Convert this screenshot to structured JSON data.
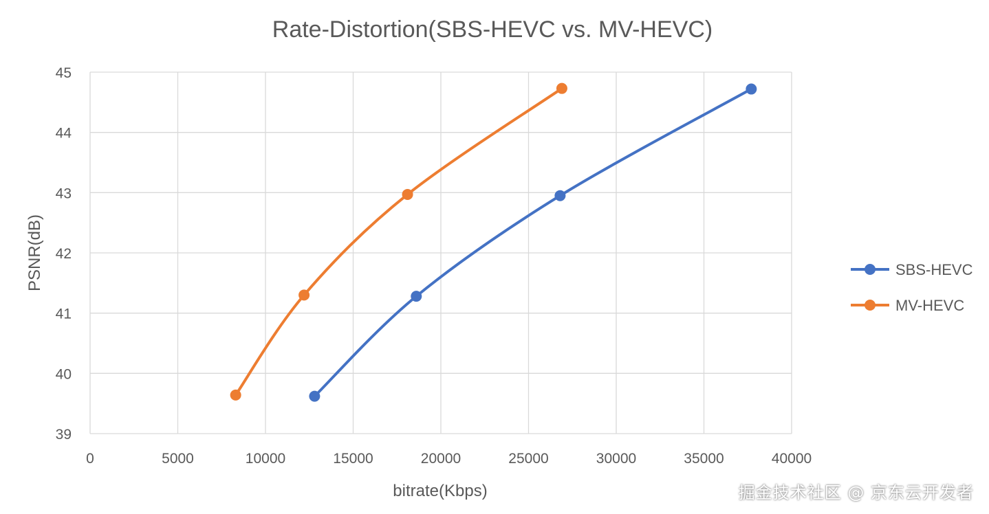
{
  "chart_data": {
    "type": "line",
    "title": "Rate-Distortion(SBS-HEVC vs. MV-HEVC)",
    "xlabel": "bitrate(Kbps)",
    "ylabel": "PSNR(dB)",
    "xlim": [
      0,
      40000
    ],
    "ylim": [
      39,
      45
    ],
    "xticks": [
      0,
      5000,
      10000,
      15000,
      20000,
      25000,
      30000,
      35000,
      40000
    ],
    "yticks": [
      39,
      40,
      41,
      42,
      43,
      44,
      45
    ],
    "grid": true,
    "smooth": true,
    "legend_position": "right",
    "series": [
      {
        "name": "SBS-HEVC",
        "color": "#4472C4",
        "points": [
          {
            "x": 12800,
            "y": 39.62
          },
          {
            "x": 18600,
            "y": 41.28
          },
          {
            "x": 26800,
            "y": 42.95
          },
          {
            "x": 37700,
            "y": 44.72
          }
        ]
      },
      {
        "name": "MV-HEVC",
        "color": "#ED7D31",
        "points": [
          {
            "x": 8300,
            "y": 39.64
          },
          {
            "x": 12200,
            "y": 41.3
          },
          {
            "x": 18100,
            "y": 42.97
          },
          {
            "x": 26900,
            "y": 44.73
          }
        ]
      }
    ]
  },
  "watermark": "掘金技术社区 @ 京东云开发者"
}
